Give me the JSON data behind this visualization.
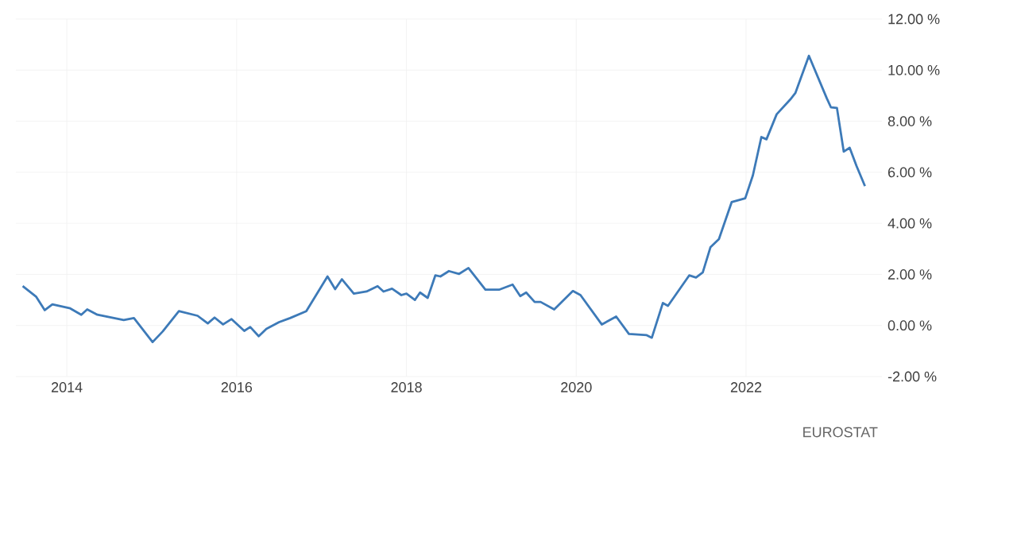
{
  "chart_data": {
    "type": "line",
    "x": [
      2013.48,
      2013.64,
      2013.74,
      2013.83,
      2014.04,
      2014.17,
      2014.24,
      2014.36,
      2014.67,
      2014.79,
      2015.01,
      2015.13,
      2015.32,
      2015.54,
      2015.66,
      2015.74,
      2015.84,
      2015.94,
      2016.09,
      2016.16,
      2016.26,
      2016.35,
      2016.5,
      2016.63,
      2016.82,
      2017.07,
      2017.16,
      2017.24,
      2017.38,
      2017.53,
      2017.66,
      2017.73,
      2017.83,
      2017.94,
      2018.0,
      2018.1,
      2018.16,
      2018.25,
      2018.34,
      2018.4,
      2018.5,
      2018.62,
      2018.73,
      2018.93,
      2019.09,
      2019.25,
      2019.34,
      2019.41,
      2019.51,
      2019.58,
      2019.74,
      2019.96,
      2020.05,
      2020.3,
      2020.47,
      2020.62,
      2020.83,
      2020.89,
      2021.02,
      2021.08,
      2021.33,
      2021.41,
      2021.49,
      2021.58,
      2021.68,
      2021.83,
      2021.99,
      2022.08,
      2022.18,
      2022.24,
      2022.36,
      2022.52,
      2022.58,
      2022.74,
      2022.95,
      2023.0,
      2023.07,
      2023.15,
      2023.22,
      2023.3,
      2023.4
    ],
    "series": [
      {
        "color": "#3d7ab8",
        "values": [
          1.54,
          1.12,
          0.6,
          0.83,
          0.67,
          0.42,
          0.63,
          0.42,
          0.21,
          0.29,
          -0.65,
          -0.23,
          0.56,
          0.38,
          0.08,
          0.31,
          0.04,
          0.25,
          -0.21,
          -0.06,
          -0.42,
          -0.13,
          0.13,
          0.29,
          0.56,
          1.92,
          1.42,
          1.81,
          1.25,
          1.33,
          1.54,
          1.33,
          1.44,
          1.19,
          1.25,
          1.0,
          1.29,
          1.08,
          1.96,
          1.92,
          2.13,
          2.02,
          2.25,
          1.4,
          1.4,
          1.6,
          1.15,
          1.29,
          0.92,
          0.92,
          0.63,
          1.35,
          1.19,
          0.04,
          0.35,
          -0.33,
          -0.38,
          -0.48,
          0.88,
          0.77,
          1.96,
          1.88,
          2.08,
          3.06,
          3.38,
          4.83,
          4.98,
          5.88,
          7.38,
          7.29,
          8.27,
          8.85,
          9.1,
          10.56,
          8.9,
          8.54,
          8.52,
          6.81,
          6.96,
          6.25,
          5.46
        ]
      }
    ],
    "xlim": [
      2013.4,
      2023.6
    ],
    "xticks": [
      2014,
      2016,
      2018,
      2020,
      2022
    ],
    "ylim": [
      -2,
      12
    ],
    "yticks": [
      {
        "value": -2,
        "label": "-2.00 %"
      },
      {
        "value": 0,
        "label": "0.00 %"
      },
      {
        "value": 2,
        "label": "2.00 %"
      },
      {
        "value": 4,
        "label": "4.00 %"
      },
      {
        "value": 6,
        "label": "6.00 %"
      },
      {
        "value": 8,
        "label": "8.00 %"
      },
      {
        "value": 10,
        "label": "10.00 %"
      },
      {
        "value": 12,
        "label": "12.00 %"
      }
    ],
    "grid": true,
    "line_style": "solid",
    "annotations": [
      "EUROSTAT"
    ]
  }
}
